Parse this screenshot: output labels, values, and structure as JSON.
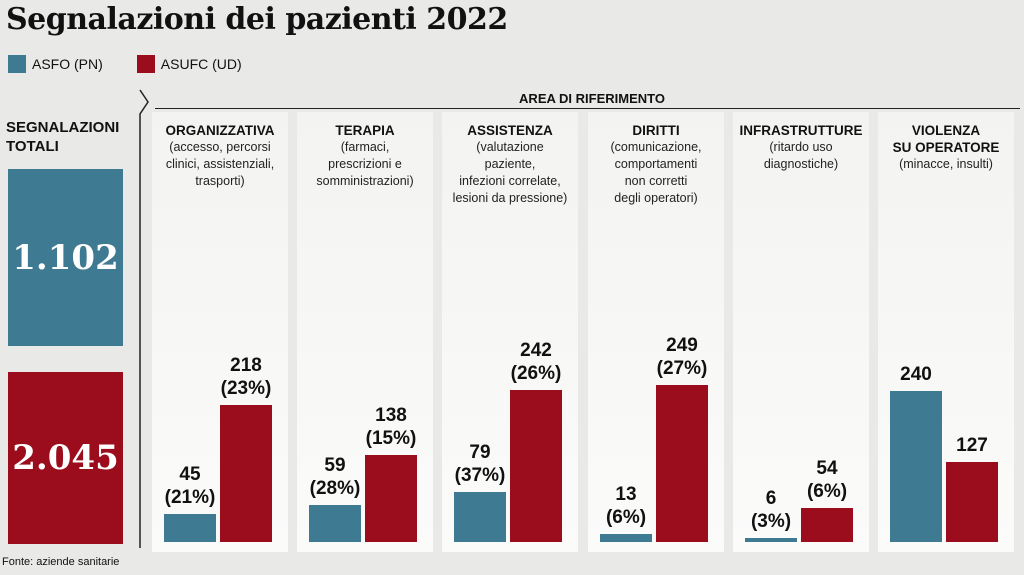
{
  "title": "Segnalazioni dei pazienti 2022",
  "colors": {
    "asfo": "#3e7a92",
    "asufc": "#9b0d1c"
  },
  "legend": [
    {
      "name": "ASFO (PN)",
      "color": "#3e7a92"
    },
    {
      "name": "ASUFC (UD)",
      "color": "#9b0d1c"
    }
  ],
  "totals": {
    "label_line1": "SEGNALAZIONI",
    "label_line2": "TOTALI",
    "asfo": "1.102",
    "asufc": "2.045"
  },
  "area_title": "AREA DI RIFERIMENTO",
  "source": "Fonte: aziende sanitarie",
  "chart_data": {
    "type": "bar",
    "categories": [
      "ORGANIZZATIVA",
      "TERAPIA",
      "ASSISTENZA",
      "DIRITTI",
      "INFRASTRUTTURE",
      "VIOLENZA SU OPERATORE"
    ],
    "series": [
      {
        "name": "ASFO (PN)",
        "values": [
          45,
          59,
          79,
          13,
          6,
          240
        ],
        "labels": [
          "45",
          "59",
          "79",
          "13",
          "6",
          "240"
        ],
        "percents": [
          "(21%)",
          "(28%)",
          "(37%)",
          "(6%)",
          "(3%)",
          ""
        ]
      },
      {
        "name": "ASUFC (UD)",
        "values": [
          218,
          138,
          242,
          249,
          54,
          127
        ],
        "labels": [
          "218",
          "138",
          "242",
          "249",
          "54",
          "127"
        ],
        "percents": [
          "(23%)",
          "(15%)",
          "(26%)",
          "(27%)",
          "(6%)",
          ""
        ]
      }
    ]
  },
  "columns": [
    {
      "title": [
        "ORGANIZZATIVA"
      ],
      "sub": [
        "(accesso, percorsi",
        "clinici, assistenziali,",
        "trasporti)"
      ]
    },
    {
      "title": [
        "TERAPIA"
      ],
      "sub": [
        "(farmaci,",
        "prescrizioni e",
        "somministrazioni)"
      ]
    },
    {
      "title": [
        "ASSISTENZA"
      ],
      "sub": [
        "(valutazione",
        "paziente,",
        "infezioni correlate,",
        "lesioni da pressione)"
      ]
    },
    {
      "title": [
        "DIRITTI"
      ],
      "sub": [
        "(comunicazione,",
        "comportamenti",
        "non corretti",
        "degli operatori)"
      ]
    },
    {
      "title": [
        "INFRASTRUTTURE"
      ],
      "sub": [
        "(ritardo uso",
        "diagnostiche)"
      ]
    },
    {
      "title": [
        "VIOLENZA",
        "SU OPERATORE"
      ],
      "sub": [
        "(minacce, insulti)"
      ]
    }
  ]
}
